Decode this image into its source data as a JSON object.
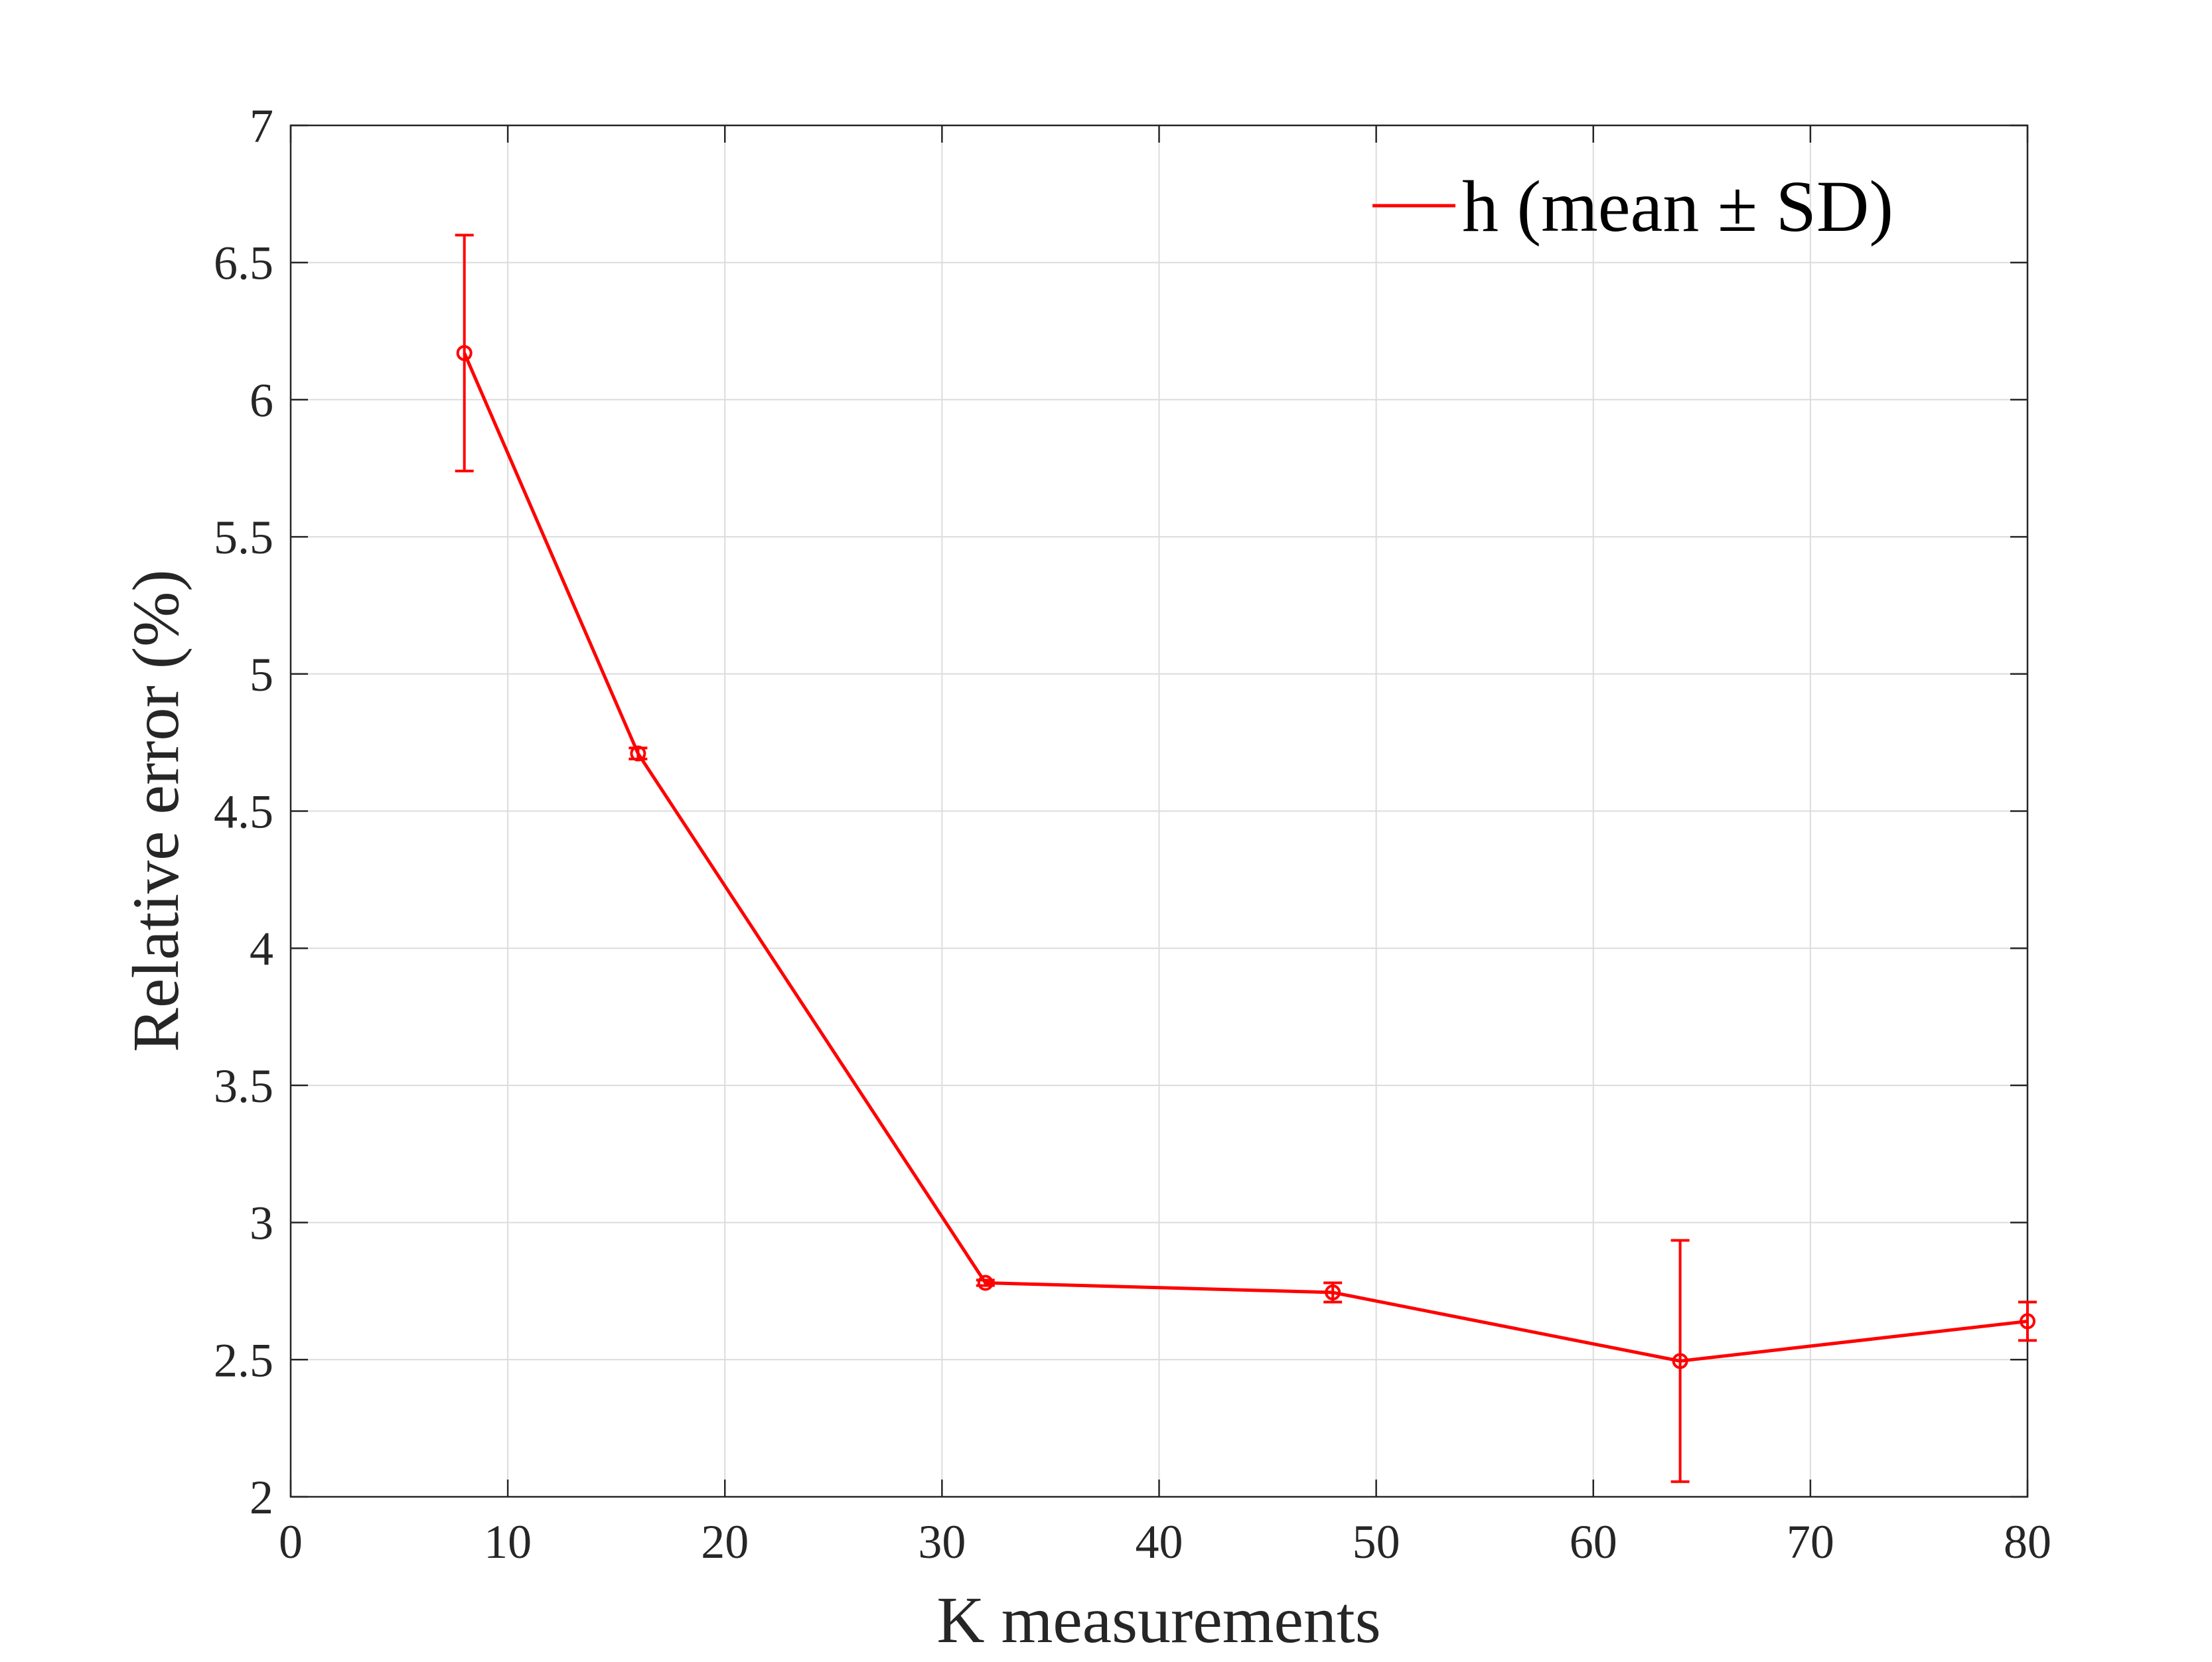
{
  "chart_data": {
    "type": "line",
    "xlabel": "K measurements",
    "ylabel": "Relative error (%)",
    "xlim": [
      0,
      80
    ],
    "ylim": [
      2,
      7
    ],
    "x_ticks": [
      "0",
      "10",
      "20",
      "30",
      "40",
      "50",
      "60",
      "70",
      "80"
    ],
    "y_ticks": [
      "2",
      "2.5",
      "3",
      "3.5",
      "4",
      "4.5",
      "5",
      "5.5",
      "6",
      "6.5",
      "7"
    ],
    "grid": true,
    "legend": {
      "position": "top-right",
      "entries": [
        "h (mean ± SD)"
      ]
    },
    "series": [
      {
        "name": "h (mean ± SD)",
        "color": "#ff0000",
        "marker": "circle",
        "error_bars": true,
        "x": [
          8,
          16,
          32,
          48,
          64,
          80
        ],
        "y": [
          6.17,
          4.71,
          2.78,
          2.745,
          2.495,
          2.64
        ],
        "sd": [
          0.43,
          0.02,
          0.01,
          0.035,
          0.44,
          0.07
        ]
      }
    ]
  }
}
